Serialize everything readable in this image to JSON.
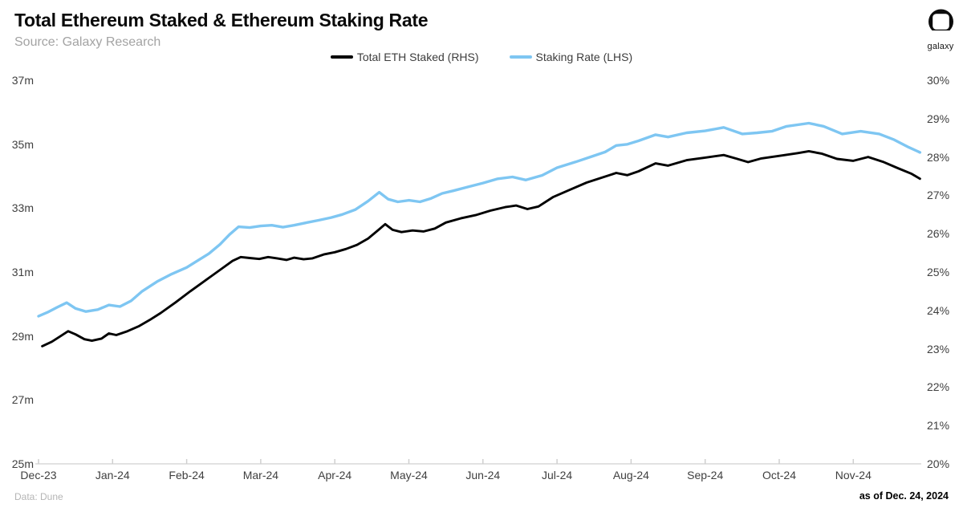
{
  "header": {
    "title": "Total Ethereum Staked & Ethereum Staking Rate",
    "source": "Source: Galaxy Research"
  },
  "logo": {
    "brand": "galaxy"
  },
  "legend": {
    "items": [
      {
        "label": "Total ETH Staked (RHS)",
        "color": "#000000"
      },
      {
        "label": "Staking Rate (LHS)",
        "color": "#7EC6F2"
      }
    ]
  },
  "footer": {
    "data_source": "Data: Dune",
    "as_of": "as of Dec. 24, 2024"
  },
  "chart_data": {
    "type": "line",
    "title": "Total Ethereum Staked & Ethereum Staking Rate",
    "grid": false,
    "legend_position": "top-center",
    "x_axis": {
      "unit": "months (Dec 2023 - Dec 24 2024)",
      "tick_labels": [
        "Dec-23",
        "Jan-24",
        "Feb-24",
        "Mar-24",
        "Apr-24",
        "May-24",
        "Jun-24",
        "Jul-24",
        "Aug-24",
        "Sep-24",
        "Oct-24",
        "Nov-24"
      ]
    },
    "y_axis_left": {
      "ylim": [
        25,
        37
      ],
      "tick_values": [
        37,
        35,
        33,
        31,
        29,
        27,
        25
      ],
      "tick_labels": [
        "37m",
        "35m",
        "33m",
        "31m",
        "29m",
        "27m",
        "25m"
      ]
    },
    "y_axis_right": {
      "ylim": [
        20,
        30
      ],
      "tick_values": [
        30,
        29,
        28,
        27,
        26,
        25,
        24,
        23,
        22,
        21,
        20
      ],
      "tick_labels": [
        "30%",
        "29%",
        "28%",
        "27%",
        "26%",
        "25%",
        "24%",
        "23%",
        "22%",
        "21%",
        "20%"
      ]
    },
    "series": [
      {
        "name": "Total ETH Staked (RHS)",
        "yaxis": "left",
        "unit": "million ETH",
        "color": "#000000",
        "stroke_width": 2.9,
        "x": [
          0.05,
          0.18,
          0.3,
          0.4,
          0.5,
          0.62,
          0.72,
          0.85,
          0.95,
          1.05,
          1.2,
          1.35,
          1.5,
          1.65,
          1.85,
          2.05,
          2.2,
          2.35,
          2.5,
          2.62,
          2.73,
          2.85,
          2.98,
          3.1,
          3.22,
          3.35,
          3.45,
          3.58,
          3.7,
          3.85,
          4.0,
          4.15,
          4.3,
          4.45,
          4.58,
          4.68,
          4.78,
          4.9,
          5.05,
          5.2,
          5.35,
          5.5,
          5.7,
          5.9,
          6.1,
          6.3,
          6.45,
          6.6,
          6.75,
          6.95,
          7.15,
          7.4,
          7.6,
          7.8,
          7.95,
          8.1,
          8.33,
          8.5,
          8.75,
          9.0,
          9.25,
          9.42,
          9.58,
          9.75,
          10.05,
          10.25,
          10.4,
          10.58,
          10.78,
          11.0,
          11.2,
          11.4,
          11.6,
          11.78,
          11.9
        ],
        "values": [
          28.68,
          28.82,
          29.0,
          29.15,
          29.05,
          28.9,
          28.85,
          28.92,
          29.08,
          29.03,
          29.15,
          29.3,
          29.5,
          29.72,
          30.05,
          30.4,
          30.65,
          30.9,
          31.15,
          31.35,
          31.47,
          31.44,
          31.41,
          31.47,
          31.43,
          31.38,
          31.45,
          31.4,
          31.43,
          31.55,
          31.62,
          31.72,
          31.85,
          32.05,
          32.3,
          32.5,
          32.32,
          32.25,
          32.3,
          32.27,
          32.36,
          32.55,
          32.68,
          32.78,
          32.92,
          33.03,
          33.08,
          32.97,
          33.05,
          33.35,
          33.55,
          33.8,
          33.95,
          34.1,
          34.03,
          34.15,
          34.4,
          34.33,
          34.5,
          34.58,
          34.66,
          34.55,
          34.44,
          34.55,
          34.65,
          34.72,
          34.78,
          34.7,
          34.54,
          34.48,
          34.6,
          34.45,
          34.25,
          34.08,
          33.92
        ]
      },
      {
        "name": "Staking Rate (LHS)",
        "yaxis": "right",
        "unit": "%",
        "color": "#7EC6F2",
        "stroke_width": 3.4,
        "x": [
          0.0,
          0.12,
          0.25,
          0.38,
          0.5,
          0.64,
          0.8,
          0.95,
          1.1,
          1.25,
          1.4,
          1.6,
          1.8,
          2.0,
          2.15,
          2.3,
          2.45,
          2.58,
          2.7,
          2.85,
          3.0,
          3.15,
          3.3,
          3.45,
          3.6,
          3.78,
          3.95,
          4.1,
          4.28,
          4.45,
          4.6,
          4.72,
          4.85,
          5.0,
          5.15,
          5.3,
          5.45,
          5.6,
          5.8,
          6.0,
          6.2,
          6.4,
          6.58,
          6.8,
          7.0,
          7.25,
          7.45,
          7.65,
          7.8,
          7.95,
          8.1,
          8.33,
          8.5,
          8.75,
          9.0,
          9.25,
          9.5,
          9.7,
          9.9,
          10.1,
          10.4,
          10.6,
          10.85,
          11.1,
          11.35,
          11.55,
          11.75,
          11.9
        ],
        "values": [
          23.85,
          23.95,
          24.08,
          24.2,
          24.05,
          23.97,
          24.02,
          24.14,
          24.1,
          24.25,
          24.5,
          24.75,
          24.95,
          25.12,
          25.3,
          25.48,
          25.72,
          25.98,
          26.18,
          26.16,
          26.2,
          26.22,
          26.17,
          26.22,
          26.28,
          26.35,
          26.42,
          26.5,
          26.63,
          26.85,
          27.08,
          26.9,
          26.83,
          26.87,
          26.83,
          26.92,
          27.05,
          27.12,
          27.22,
          27.32,
          27.43,
          27.48,
          27.4,
          27.52,
          27.72,
          27.87,
          28.0,
          28.13,
          28.3,
          28.33,
          28.42,
          28.58,
          28.52,
          28.63,
          28.68,
          28.77,
          28.6,
          28.63,
          28.67,
          28.8,
          28.88,
          28.8,
          28.6,
          28.67,
          28.6,
          28.45,
          28.25,
          28.12
        ]
      }
    ],
    "as_of": "as of Dec. 24, 2024",
    "data_source": "Data: Dune",
    "axis_line_color": "#d9d9d9",
    "tick_color": "#cfcfcf"
  }
}
